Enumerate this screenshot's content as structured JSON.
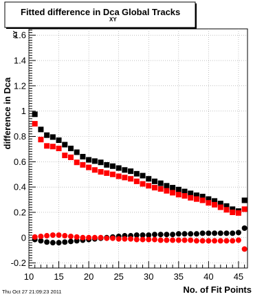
{
  "chart_data": {
    "type": "scatter",
    "title": "Fitted difference in Dca",
    "title_subscript": "XY",
    "title_suffix": "Global Tracks",
    "ylabel": "difference in Dca",
    "ylabel_subscript": "XY",
    "xlabel": "No. of Fit Points",
    "timestamp": "Thu Oct 27 21:09:23 2011",
    "xlim": [
      10,
      46.5
    ],
    "ylim": [
      -0.24,
      1.65
    ],
    "grid": true,
    "x_ticks": [
      10,
      15,
      20,
      25,
      30,
      35,
      40,
      45
    ],
    "x_tick_labels": [
      "10",
      "15",
      "20",
      "25",
      "30",
      "35",
      "40",
      "45"
    ],
    "y_ticks": [
      -0.2,
      0,
      0.2,
      0.4,
      0.6,
      0.8,
      1,
      1.2,
      1.4,
      1.6
    ],
    "y_tick_labels": [
      "-0.2",
      "0",
      "0.2",
      "0.4",
      "0.6",
      "0.8",
      "1",
      "1.2",
      "1.4",
      "1.6"
    ],
    "x": [
      11,
      12,
      13,
      14,
      15,
      16,
      17,
      18,
      19,
      20,
      21,
      22,
      23,
      24,
      25,
      26,
      27,
      28,
      29,
      30,
      31,
      32,
      33,
      34,
      35,
      36,
      37,
      38,
      39,
      40,
      41,
      42,
      43,
      44,
      45,
      46
    ],
    "series": [
      {
        "marker": "square",
        "color": "#000000",
        "values": [
          0.975,
          0.855,
          0.81,
          0.795,
          0.77,
          0.735,
          0.705,
          0.675,
          0.64,
          0.615,
          0.605,
          0.595,
          0.575,
          0.565,
          0.55,
          0.535,
          0.525,
          0.505,
          0.49,
          0.465,
          0.445,
          0.43,
          0.41,
          0.395,
          0.38,
          0.365,
          0.35,
          0.335,
          0.325,
          0.305,
          0.29,
          0.27,
          0.25,
          0.225,
          0.21,
          0.295
        ]
      },
      {
        "marker": "square",
        "color": "#ff0000",
        "values": [
          0.9,
          0.775,
          0.725,
          0.72,
          0.705,
          0.65,
          0.635,
          0.595,
          0.575,
          0.555,
          0.535,
          0.52,
          0.51,
          0.5,
          0.485,
          0.475,
          0.465,
          0.445,
          0.425,
          0.41,
          0.395,
          0.385,
          0.37,
          0.355,
          0.34,
          0.33,
          0.315,
          0.305,
          0.295,
          0.275,
          0.26,
          0.24,
          0.22,
          0.2,
          0.195,
          0.225
        ]
      },
      {
        "marker": "circle",
        "color": "#000000",
        "values": [
          -0.015,
          -0.025,
          -0.035,
          -0.04,
          -0.04,
          -0.035,
          -0.03,
          -0.025,
          -0.02,
          -0.015,
          -0.01,
          -0.005,
          0,
          0.005,
          0.01,
          0.015,
          0.015,
          0.02,
          0.02,
          0.02,
          0.025,
          0.025,
          0.025,
          0.025,
          0.03,
          0.03,
          0.03,
          0.03,
          0.035,
          0.035,
          0.035,
          0.035,
          0.035,
          0.035,
          0.04,
          0.075
        ]
      },
      {
        "marker": "circle",
        "color": "#ff0000",
        "values": [
          0.005,
          0.01,
          0.015,
          0.02,
          0.02,
          0.015,
          0.01,
          0.005,
          0,
          0,
          0,
          0,
          -0.005,
          -0.005,
          -0.01,
          -0.01,
          -0.01,
          -0.015,
          -0.015,
          -0.015,
          -0.015,
          -0.02,
          -0.02,
          -0.02,
          -0.02,
          -0.02,
          -0.02,
          -0.025,
          -0.025,
          -0.025,
          -0.025,
          -0.025,
          -0.025,
          -0.025,
          -0.02,
          -0.09
        ]
      }
    ]
  }
}
